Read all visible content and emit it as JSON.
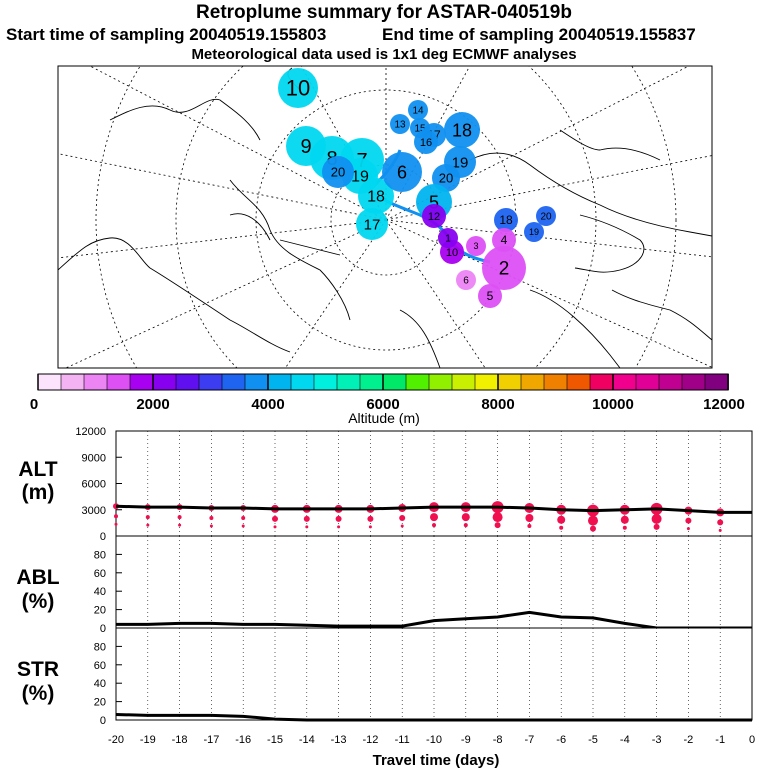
{
  "header": {
    "title": "Retroplume summary for ASTAR-040519b",
    "start_label": "Start time of sampling 20040519.155803",
    "end_label": "End time of sampling 20040519.155837",
    "met_label": "Meteorological data used is 1x1 deg ECMWF analyses"
  },
  "colorbar": {
    "label": "Altitude (m)",
    "ticks": [
      "0",
      "2000",
      "4000",
      "6000",
      "8000",
      "10000",
      "12000"
    ],
    "colors": [
      "#fce4fc",
      "#f4b4f4",
      "#ec84f4",
      "#dc50f4",
      "#a800f0",
      "#8800f0",
      "#6010f0",
      "#3c3cf0",
      "#1e64f0",
      "#1090f0",
      "#00b4f0",
      "#00d8f0",
      "#00f0e0",
      "#00f0b8",
      "#00f090",
      "#00e868",
      "#50f000",
      "#90f000",
      "#c8f000",
      "#f0f000",
      "#f0d000",
      "#f0a800",
      "#f08000",
      "#f05800",
      "#f00060",
      "#f0008c",
      "#e00098",
      "#c00090",
      "#a00088",
      "#800080"
    ]
  },
  "map_labels": [
    {
      "text": "10",
      "color": "#00d8f0"
    },
    {
      "text": "9",
      "color": "#00d8f0"
    },
    {
      "text": "8",
      "color": "#00d8f0"
    },
    {
      "text": "7",
      "color": "#00d8f0"
    },
    {
      "text": "19",
      "color": "#00d8f0"
    },
    {
      "text": "20",
      "color": "#1090f0"
    },
    {
      "text": "18",
      "color": "#00d8f0"
    },
    {
      "text": "17",
      "color": "#00d8f0"
    },
    {
      "text": "6",
      "color": "#1090f0"
    },
    {
      "text": "14",
      "color": "#1090f0"
    },
    {
      "text": "13",
      "color": "#1090f0"
    },
    {
      "text": "15",
      "color": "#1090f0"
    },
    {
      "text": "18",
      "color": "#1090f0"
    },
    {
      "text": "17",
      "color": "#1090f0"
    },
    {
      "text": "16",
      "color": "#1090f0"
    },
    {
      "text": "19",
      "color": "#1090f0"
    },
    {
      "text": "20",
      "color": "#1090f0"
    },
    {
      "text": "5",
      "color": "#00b4f0"
    },
    {
      "text": "12",
      "color": "#8800f0"
    },
    {
      "text": "18",
      "color": "#1e64f0"
    },
    {
      "text": "20",
      "color": "#1e64f0"
    },
    {
      "text": "19",
      "color": "#1e64f0"
    },
    {
      "text": "10",
      "color": "#a800f0"
    },
    {
      "text": "4",
      "color": "#dc50f4"
    },
    {
      "text": "2",
      "color": "#dc50f4"
    },
    {
      "text": "3",
      "color": "#dc50f4"
    },
    {
      "text": "5",
      "color": "#dc50f4"
    },
    {
      "text": "6",
      "color": "#ec84f4"
    },
    {
      "text": "1",
      "color": "#8800f0"
    }
  ],
  "chart_data": [
    {
      "type": "line",
      "name": "ALT",
      "ylabel": "ALT",
      "yunit": "(m)",
      "ylim": [
        0,
        12000
      ],
      "yticks": [
        "0",
        "3000",
        "6000",
        "9000",
        "12000"
      ],
      "x": [
        -20,
        -19,
        -18,
        -17,
        -16,
        -15,
        -14,
        -13,
        -12,
        -11,
        -10,
        -9,
        -8,
        -7,
        -6,
        -5,
        -4,
        -3,
        -2,
        -1,
        0
      ],
      "values": [
        3400,
        3300,
        3300,
        3200,
        3200,
        3100,
        3100,
        3100,
        3100,
        3200,
        3300,
        3300,
        3300,
        3200,
        3000,
        2900,
        3000,
        3100,
        2900,
        2700,
        2700
      ],
      "cluster_sizes": [
        3,
        3,
        3,
        3,
        3,
        4,
        4,
        4,
        4,
        4,
        5,
        5,
        6,
        5,
        5,
        6,
        5,
        6,
        4,
        4,
        0
      ],
      "color": "#000000",
      "marker_color": "#f01050"
    },
    {
      "type": "line",
      "name": "ABL",
      "ylabel": "ABL",
      "yunit": "(%)",
      "ylim": [
        0,
        100
      ],
      "yticks": [
        "0",
        "20",
        "40",
        "60",
        "80"
      ],
      "x": [
        -20,
        -19,
        -18,
        -17,
        -16,
        -15,
        -14,
        -13,
        -12,
        -11,
        -10,
        -9,
        -8,
        -7,
        -6,
        -5,
        -4,
        -3,
        -2,
        -1,
        0
      ],
      "values": [
        4,
        4,
        5,
        5,
        4,
        4,
        3,
        2,
        2,
        2,
        8,
        10,
        12,
        17,
        12,
        11,
        5,
        0,
        0,
        0,
        0
      ]
    },
    {
      "type": "line",
      "name": "STR",
      "ylabel": "STR",
      "yunit": "(%)",
      "ylim": [
        0,
        100
      ],
      "yticks": [
        "0",
        "20",
        "40",
        "60",
        "80"
      ],
      "x": [
        -20,
        -19,
        -18,
        -17,
        -16,
        -15,
        -14,
        -13,
        -12,
        -11,
        -10,
        -9,
        -8,
        -7,
        -6,
        -5,
        -4,
        -3,
        -2,
        -1,
        0
      ],
      "values": [
        6,
        5,
        5,
        5,
        4,
        1,
        0,
        0,
        0,
        0,
        0,
        0,
        0,
        0,
        0,
        0,
        0,
        0,
        0,
        0,
        0
      ]
    }
  ],
  "xaxis": {
    "label": "Travel time (days)",
    "ticks": [
      "-20",
      "-19",
      "-18",
      "-17",
      "-16",
      "-15",
      "-14",
      "-13",
      "-12",
      "-11",
      "-10",
      "-9",
      "-8",
      "-7",
      "-6",
      "-5",
      "-4",
      "-3",
      "-2",
      "-1",
      "0"
    ]
  }
}
